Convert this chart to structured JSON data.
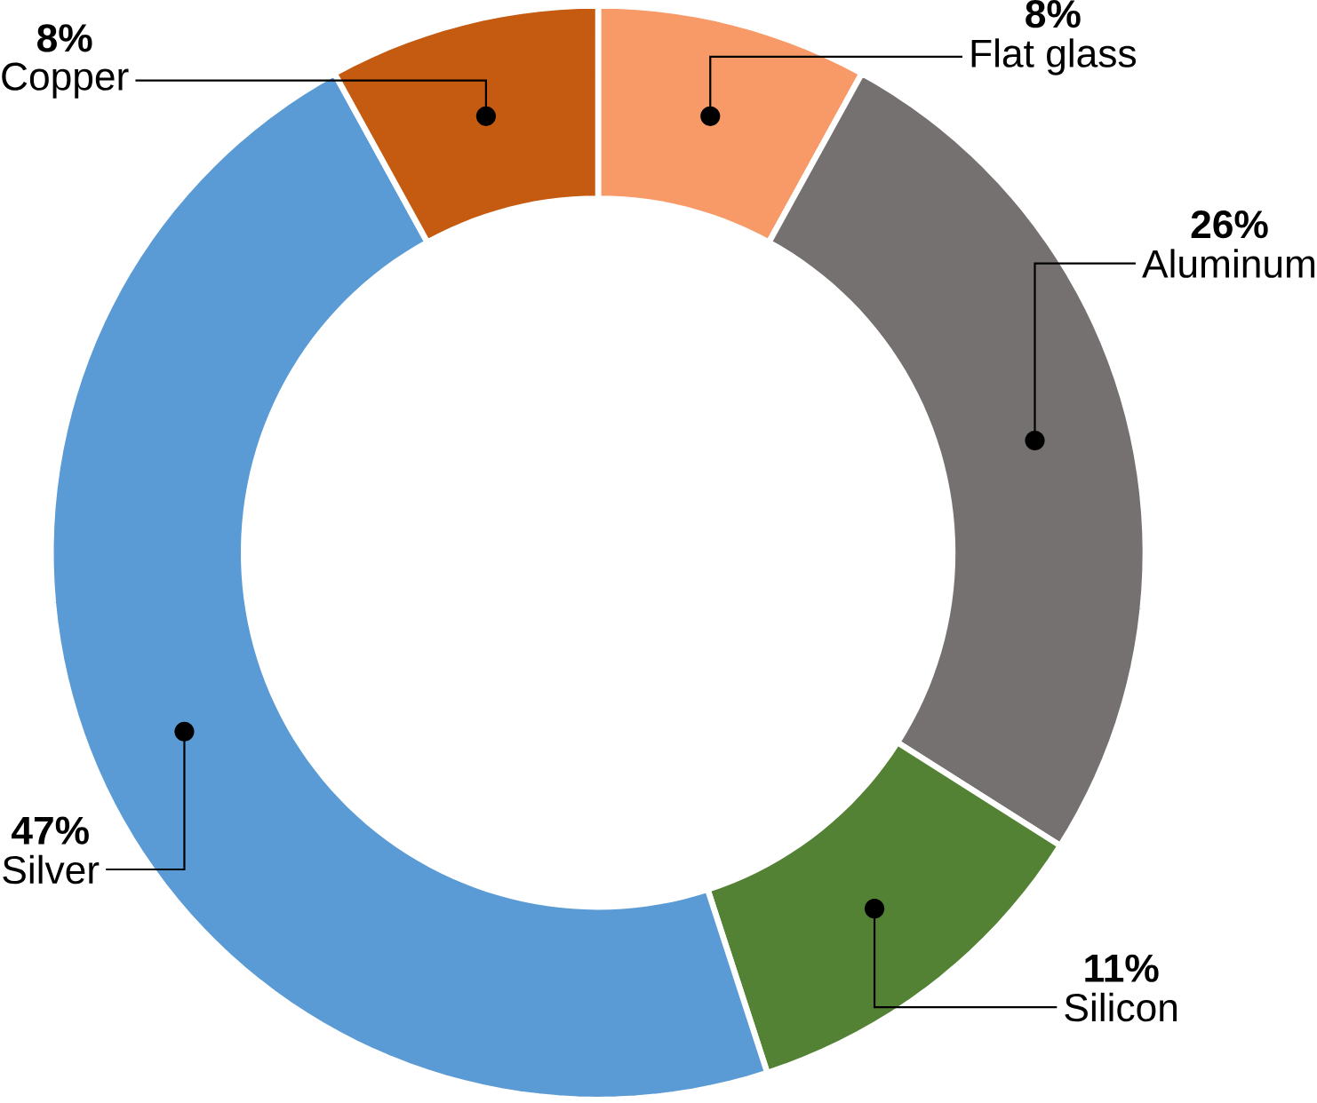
{
  "chart_data": {
    "type": "donut",
    "categories": [
      "Flat glass",
      "Aluminum",
      "Silicon",
      "Silver",
      "Copper"
    ],
    "values": [
      8,
      26,
      11,
      47,
      8
    ],
    "value_labels": [
      "8%",
      "26%",
      "11%",
      "47%",
      "8%"
    ],
    "colors": [
      "#f79a68",
      "#767171",
      "#548235",
      "#5b9bd5",
      "#c55a11"
    ]
  }
}
